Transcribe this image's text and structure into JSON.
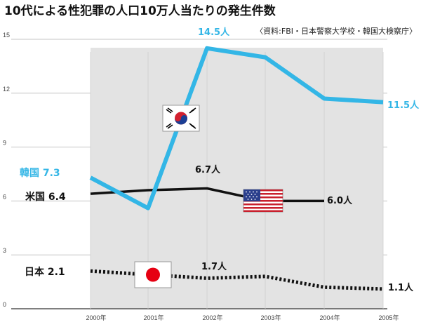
{
  "chart_data": {
    "type": "line",
    "title": "10代による性犯罪の人口10万人当たりの発生件数",
    "source": "〈資料:FBI・日本警察大学校・韓国大検察庁〉",
    "categories": [
      "2000年",
      "2001年",
      "2002年",
      "2003年",
      "2004年",
      "2005年"
    ],
    "ylim": [
      0,
      15
    ],
    "yticks": [
      "0",
      "3",
      "6",
      "9",
      "12",
      "15"
    ],
    "series": [
      {
        "name": "韓国",
        "label": "韓国 7.3",
        "values": [
          7.3,
          5.6,
          14.5,
          14.0,
          11.7,
          11.5
        ],
        "color": "#33b6e6",
        "style": "solid",
        "annotations": [
          {
            "index": 2,
            "text": "14.5人"
          },
          {
            "index": 5,
            "text": "11.5人"
          }
        ]
      },
      {
        "name": "米国",
        "label": "米国 6.4",
        "values": [
          6.4,
          6.6,
          6.7,
          6.0,
          6.0,
          null
        ],
        "color": "#111111",
        "style": "solid",
        "annotations": [
          {
            "index": 2,
            "text": "6.7人"
          },
          {
            "index": 4,
            "text": "6.0人"
          }
        ]
      },
      {
        "name": "日本",
        "label": "日本 2.1",
        "values": [
          2.1,
          1.9,
          1.7,
          1.8,
          1.2,
          1.1
        ],
        "color": "#111111",
        "style": "dotted",
        "annotations": [
          {
            "index": 2,
            "text": "1.7人"
          },
          {
            "index": 5,
            "text": "1.1人"
          }
        ]
      }
    ]
  },
  "flags": [
    {
      "country": "韓国",
      "icon": "south-korea-flag-icon"
    },
    {
      "country": "米国",
      "icon": "usa-flag-icon"
    },
    {
      "country": "日本",
      "icon": "japan-flag-icon"
    }
  ],
  "colors": {
    "shading": "#e3e3e3",
    "korea": "#33b6e6",
    "usa": "#111111",
    "japan": "#111111"
  }
}
